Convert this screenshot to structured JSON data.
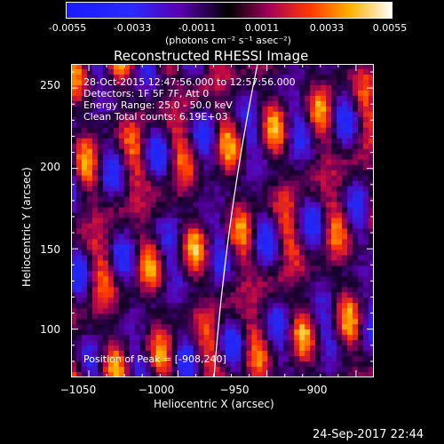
{
  "colorbar": {
    "ticks": [
      "-0.0055",
      "-0.0033",
      "-0.0011",
      "0.0011",
      "0.0033",
      "0.0055"
    ],
    "units": "(photons cm⁻² s⁻¹ asec⁻²)",
    "min": -0.0055,
    "max": 0.0055
  },
  "plot": {
    "title": "Reconstructed RHESSI Image",
    "xlabel": "Heliocentric X (arcsec)",
    "ylabel": "Heliocentric Y (arcsec)",
    "xlim": [
      -1060,
      -890
    ],
    "ylim": [
      70,
      265
    ],
    "xticks": [
      "−1050",
      "−1000",
      "−950",
      "−900"
    ],
    "yticks": [
      "250",
      "200",
      "150",
      "100"
    ]
  },
  "annotations": {
    "time_range": "28-Oct-2015 12:47:56.000 to 12:57:56.000",
    "detectors": "Detectors: 1F 5F 7F, Att 0",
    "energy": "Energy Range: 25.0 - 50.0 keV",
    "clean": "Clean     Total counts: 6.19E+03",
    "peak": "Position of Peak = [-908,240]"
  },
  "footer": {
    "timestamp": "24-Sep-2017 22:44"
  },
  "colors": {
    "background": "#000000",
    "text": "#ffffff"
  }
}
